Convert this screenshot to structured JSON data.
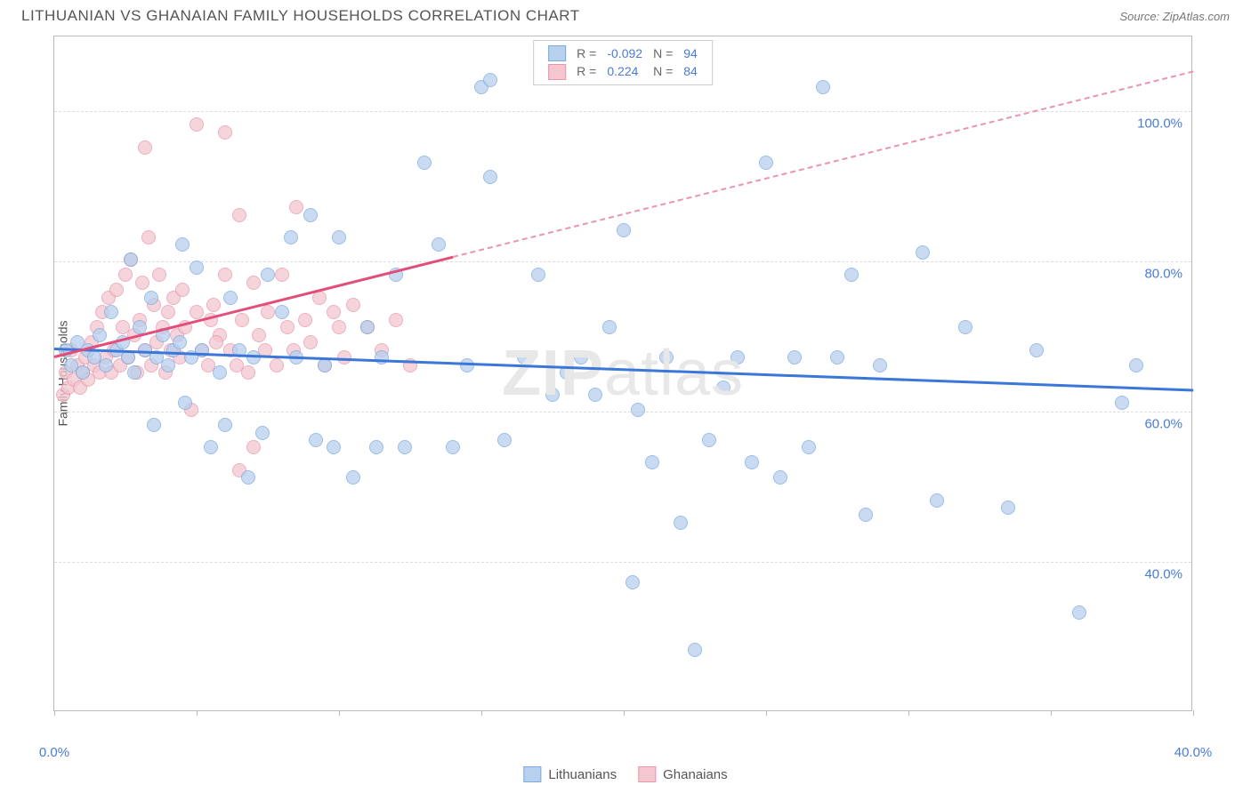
{
  "header": {
    "title": "LITHUANIAN VS GHANAIAN FAMILY HOUSEHOLDS CORRELATION CHART",
    "source": "Source: ZipAtlas.com"
  },
  "watermark": {
    "prefix": "ZIP",
    "suffix": "atlas"
  },
  "chart": {
    "type": "scatter",
    "ylabel": "Family Households",
    "background_color": "#ffffff",
    "grid_color": "#dddddd",
    "border_color": "#bbbbbb",
    "xlim": [
      0,
      40
    ],
    "ylim": [
      20,
      110
    ],
    "yticks": [
      {
        "value": 40,
        "label": "40.0%",
        "color": "#4a7bd6"
      },
      {
        "value": 60,
        "label": "60.0%",
        "color": "#4a7bd6"
      },
      {
        "value": 80,
        "label": "80.0%",
        "color": "#4a7bd6"
      },
      {
        "value": 100,
        "label": "100.0%",
        "color": "#4a7bd6"
      }
    ],
    "xticks": [
      0,
      5,
      10,
      15,
      20,
      25,
      30,
      35,
      40
    ],
    "xtick_labels": [
      {
        "value": 0,
        "label": "0.0%",
        "color": "#4a7bd6"
      },
      {
        "value": 40,
        "label": "40.0%",
        "color": "#4a7bd6"
      }
    ],
    "series": [
      {
        "name": "Lithuanians",
        "fill_color": "#b6d0ee",
        "stroke_color": "#7da9dd",
        "trend_color": "#3b77d8",
        "trend": {
          "x1": 0,
          "y1": 68.5,
          "x2": 40,
          "y2": 63.0,
          "dash_from_x": 40
        },
        "points": [
          [
            0.4,
            68
          ],
          [
            0.6,
            66
          ],
          [
            0.8,
            69
          ],
          [
            1.0,
            65
          ],
          [
            1.2,
            68
          ],
          [
            1.4,
            67
          ],
          [
            1.6,
            70
          ],
          [
            1.8,
            66
          ],
          [
            2.0,
            73
          ],
          [
            2.2,
            68
          ],
          [
            2.4,
            69
          ],
          [
            2.6,
            67
          ],
          [
            2.7,
            80
          ],
          [
            2.8,
            65
          ],
          [
            3.0,
            71
          ],
          [
            3.2,
            68
          ],
          [
            3.4,
            75
          ],
          [
            3.5,
            58
          ],
          [
            3.6,
            67
          ],
          [
            3.8,
            70
          ],
          [
            4.0,
            66
          ],
          [
            4.2,
            68
          ],
          [
            4.4,
            69
          ],
          [
            4.5,
            82
          ],
          [
            4.6,
            61
          ],
          [
            4.8,
            67
          ],
          [
            5.0,
            79
          ],
          [
            5.2,
            68
          ],
          [
            5.5,
            55
          ],
          [
            5.8,
            65
          ],
          [
            6.0,
            58
          ],
          [
            6.2,
            75
          ],
          [
            6.5,
            68
          ],
          [
            6.8,
            51
          ],
          [
            7.0,
            67
          ],
          [
            7.3,
            57
          ],
          [
            7.5,
            78
          ],
          [
            8.0,
            73
          ],
          [
            8.3,
            83
          ],
          [
            8.5,
            67
          ],
          [
            9.0,
            86
          ],
          [
            9.2,
            56
          ],
          [
            9.5,
            66
          ],
          [
            9.8,
            55
          ],
          [
            10.0,
            83
          ],
          [
            10.5,
            51
          ],
          [
            11.0,
            71
          ],
          [
            11.3,
            55
          ],
          [
            11.5,
            67
          ],
          [
            12.0,
            78
          ],
          [
            12.3,
            55
          ],
          [
            13.0,
            93
          ],
          [
            13.5,
            82
          ],
          [
            14.0,
            55
          ],
          [
            14.5,
            66
          ],
          [
            15.0,
            103
          ],
          [
            15.3,
            104
          ],
          [
            15.3,
            91
          ],
          [
            15.8,
            56
          ],
          [
            16.5,
            67
          ],
          [
            17.0,
            78
          ],
          [
            17.5,
            62
          ],
          [
            18.0,
            65
          ],
          [
            18.5,
            67
          ],
          [
            19.0,
            62
          ],
          [
            19.5,
            71
          ],
          [
            20.0,
            84
          ],
          [
            20.3,
            37
          ],
          [
            20.5,
            60
          ],
          [
            21.0,
            53
          ],
          [
            21.5,
            67
          ],
          [
            22.0,
            45
          ],
          [
            22.5,
            28
          ],
          [
            23.0,
            56
          ],
          [
            23.5,
            63
          ],
          [
            24.0,
            67
          ],
          [
            24.5,
            53
          ],
          [
            25.0,
            93
          ],
          [
            25.5,
            51
          ],
          [
            26.0,
            67
          ],
          [
            26.5,
            55
          ],
          [
            27.0,
            103
          ],
          [
            27.5,
            67
          ],
          [
            28.0,
            78
          ],
          [
            28.5,
            46
          ],
          [
            29.0,
            66
          ],
          [
            30.5,
            81
          ],
          [
            31.0,
            48
          ],
          [
            32.0,
            71
          ],
          [
            33.5,
            47
          ],
          [
            34.5,
            68
          ],
          [
            36.0,
            33
          ],
          [
            37.5,
            61
          ],
          [
            38.0,
            66
          ]
        ]
      },
      {
        "name": "Ghanaians",
        "fill_color": "#f4c6d0",
        "stroke_color": "#e995aa",
        "trend_color": "#e44d7a",
        "trend": {
          "x1": 0,
          "y1": 67.5,
          "x2": 40,
          "y2": 105.5,
          "dash_from_x": 14
        },
        "points": [
          [
            0.3,
            62
          ],
          [
            0.4,
            65
          ],
          [
            0.5,
            63
          ],
          [
            0.6,
            68
          ],
          [
            0.7,
            64
          ],
          [
            0.8,
            66
          ],
          [
            0.9,
            63
          ],
          [
            1.0,
            65
          ],
          [
            1.1,
            67
          ],
          [
            1.2,
            64
          ],
          [
            1.3,
            69
          ],
          [
            1.4,
            66
          ],
          [
            1.5,
            71
          ],
          [
            1.6,
            65
          ],
          [
            1.7,
            73
          ],
          [
            1.8,
            67
          ],
          [
            1.9,
            75
          ],
          [
            2.0,
            65
          ],
          [
            2.1,
            68
          ],
          [
            2.2,
            76
          ],
          [
            2.3,
            66
          ],
          [
            2.4,
            71
          ],
          [
            2.5,
            78
          ],
          [
            2.6,
            67
          ],
          [
            2.7,
            80
          ],
          [
            2.8,
            70
          ],
          [
            2.9,
            65
          ],
          [
            3.0,
            72
          ],
          [
            3.1,
            77
          ],
          [
            3.2,
            68
          ],
          [
            3.3,
            83
          ],
          [
            3.4,
            66
          ],
          [
            3.5,
            74
          ],
          [
            3.6,
            69
          ],
          [
            3.7,
            78
          ],
          [
            3.8,
            71
          ],
          [
            3.9,
            65
          ],
          [
            3.2,
            95
          ],
          [
            4.0,
            73
          ],
          [
            4.1,
            68
          ],
          [
            4.2,
            75
          ],
          [
            4.3,
            70
          ],
          [
            4.4,
            67
          ],
          [
            4.5,
            76
          ],
          [
            4.6,
            71
          ],
          [
            4.8,
            60
          ],
          [
            5.0,
            73
          ],
          [
            5.0,
            98
          ],
          [
            5.2,
            68
          ],
          [
            5.4,
            66
          ],
          [
            5.6,
            74
          ],
          [
            5.8,
            70
          ],
          [
            5.5,
            72
          ],
          [
            5.7,
            69
          ],
          [
            6.0,
            78
          ],
          [
            6.0,
            97
          ],
          [
            6.2,
            68
          ],
          [
            6.4,
            66
          ],
          [
            6.5,
            86
          ],
          [
            6.6,
            72
          ],
          [
            6.8,
            65
          ],
          [
            7.0,
            77
          ],
          [
            7.0,
            55
          ],
          [
            7.2,
            70
          ],
          [
            6.5,
            52
          ],
          [
            7.4,
            68
          ],
          [
            7.5,
            73
          ],
          [
            7.8,
            66
          ],
          [
            8.0,
            78
          ],
          [
            8.2,
            71
          ],
          [
            8.4,
            68
          ],
          [
            8.5,
            87
          ],
          [
            8.8,
            72
          ],
          [
            9.0,
            69
          ],
          [
            9.3,
            75
          ],
          [
            9.5,
            66
          ],
          [
            9.8,
            73
          ],
          [
            10.0,
            71
          ],
          [
            10.2,
            67
          ],
          [
            10.5,
            74
          ],
          [
            11.0,
            71
          ],
          [
            11.5,
            68
          ],
          [
            12.0,
            72
          ],
          [
            12.5,
            66
          ]
        ]
      }
    ],
    "legend_top": {
      "rows": [
        {
          "swatch_fill": "#b6d0ee",
          "swatch_stroke": "#7da9dd",
          "r_label": "R =",
          "r_value": "-0.092",
          "n_label": "N =",
          "n_value": "94",
          "value_color": "#4a7bd6"
        },
        {
          "swatch_fill": "#f4c6d0",
          "swatch_stroke": "#e995aa",
          "r_label": "R =",
          "r_value": "0.224",
          "n_label": "N =",
          "n_value": "84",
          "value_color": "#4a7bd6"
        }
      ]
    },
    "legend_bottom": [
      {
        "swatch_fill": "#b6d0ee",
        "swatch_stroke": "#7da9dd",
        "label": "Lithuanians"
      },
      {
        "swatch_fill": "#f4c6d0",
        "swatch_stroke": "#e995aa",
        "label": "Ghanaians"
      }
    ]
  }
}
